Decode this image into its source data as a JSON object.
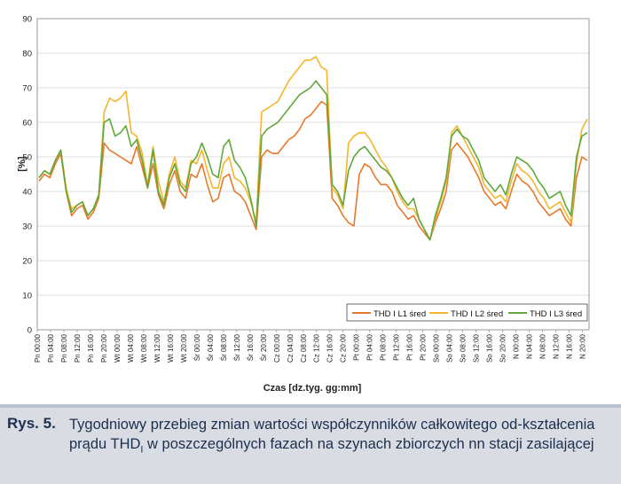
{
  "chart_data": {
    "type": "line",
    "ylabel": "[%]",
    "xlabel": "Czas [dz.tyg. gg:mm]",
    "ylim": [
      0,
      90
    ],
    "yticks": [
      0,
      10,
      20,
      30,
      40,
      50,
      60,
      70,
      80,
      90
    ],
    "xticks": [
      "Pn 00:00",
      "Pn 04:00",
      "Pn 08:00",
      "Pn 12:00",
      "Pn 16:00",
      "Pn 20:00",
      "Wt 00:00",
      "Wt 04:00",
      "Wt 08:00",
      "Wt 12:00",
      "Wt 16:00",
      "Wt 20:00",
      "Śr 00:00",
      "Śr 04:00",
      "Śr 08:00",
      "Śr 12:00",
      "Śr 16:00",
      "Śr 20:00",
      "Cz 00:00",
      "Cz 04:00",
      "Cz 08:00",
      "Cz 12:00",
      "Cz 16:00",
      "Cz 20:00",
      "Pt 00:00",
      "Pt 04:00",
      "Pt 08:00",
      "Pt 12:00",
      "Pt 16:00",
      "Pt 20:00",
      "So 00:00",
      "So 04:00",
      "So 08:00",
      "So 12:00",
      "So 16:00",
      "So 20:00",
      "N 00:00",
      "N 04:00",
      "N 08:00",
      "N 12:00",
      "N 16:00",
      "N 20:00"
    ],
    "grid": true,
    "legend_position": "bottom-right",
    "series": [
      {
        "name": "THD I L1 śred",
        "color": "#e8792b",
        "values": [
          43,
          45,
          44,
          48,
          51,
          40,
          33,
          35,
          36,
          32,
          34,
          38,
          54,
          52,
          51,
          50,
          49,
          48,
          53,
          47,
          41,
          48,
          39,
          35,
          42,
          46,
          40,
          38,
          45,
          44,
          48,
          42,
          37,
          38,
          44,
          45,
          40,
          39,
          37,
          33,
          29,
          50,
          52,
          51,
          51,
          53,
          55,
          56,
          58,
          61,
          62,
          64,
          66,
          65,
          38,
          36,
          33,
          31,
          30,
          45,
          48,
          47,
          44,
          42,
          42,
          40,
          36,
          34,
          32,
          33,
          30,
          28,
          26,
          31,
          35,
          40,
          52,
          54,
          52,
          50,
          47,
          44,
          40,
          38,
          36,
          37,
          35,
          40,
          45,
          43,
          42,
          40,
          37,
          35,
          33,
          34,
          35,
          32,
          30,
          44,
          50,
          49
        ]
      },
      {
        "name": "THD I L2 śred",
        "color": "#f5b62d",
        "values": [
          44,
          46,
          45,
          49,
          52,
          41,
          35,
          36,
          37,
          33,
          35,
          39,
          63,
          67,
          66,
          67,
          69,
          57,
          56,
          51,
          42,
          53,
          43,
          37,
          45,
          50,
          43,
          41,
          49,
          48,
          52,
          46,
          41,
          41,
          48,
          50,
          44,
          43,
          41,
          37,
          31,
          63,
          64,
          65,
          66,
          69,
          72,
          74,
          76,
          78,
          78,
          79,
          76,
          75,
          41,
          39,
          35,
          54,
          56,
          57,
          57,
          55,
          52,
          49,
          47,
          44,
          40,
          37,
          35,
          35,
          32,
          29,
          26,
          32,
          37,
          43,
          57,
          59,
          56,
          53,
          50,
          47,
          42,
          40,
          38,
          39,
          37,
          43,
          48,
          46,
          45,
          43,
          40,
          38,
          35,
          36,
          37,
          34,
          31,
          48,
          58,
          61
        ]
      },
      {
        "name": "THD I L3 śred",
        "color": "#61a83a",
        "values": [
          44,
          46,
          45,
          49,
          52,
          40,
          34,
          36,
          37,
          33,
          35,
          39,
          60,
          61,
          56,
          57,
          59,
          53,
          55,
          49,
          41,
          52,
          40,
          36,
          44,
          48,
          42,
          40,
          48,
          50,
          54,
          50,
          45,
          44,
          53,
          55,
          49,
          47,
          44,
          38,
          30,
          56,
          58,
          59,
          60,
          62,
          64,
          66,
          68,
          69,
          70,
          72,
          70,
          68,
          42,
          40,
          36,
          46,
          50,
          52,
          53,
          51,
          49,
          47,
          46,
          44,
          41,
          38,
          36,
          38,
          32,
          29,
          26,
          33,
          38,
          44,
          56,
          58,
          56,
          55,
          52,
          49,
          44,
          42,
          40,
          42,
          39,
          45,
          50,
          49,
          48,
          46,
          43,
          41,
          38,
          39,
          40,
          36,
          33,
          50,
          56,
          57
        ]
      }
    ]
  },
  "caption": {
    "label": "Rys. 5.",
    "text_before_sub": "Tygodniowy przebieg zmian wartości współczynników całkowitego od-kształcenia prądu THD",
    "sub": "I",
    "text_after_sub": " w poszczególnych fazach na szynach zbiorczych nn stacji zasilającej"
  }
}
